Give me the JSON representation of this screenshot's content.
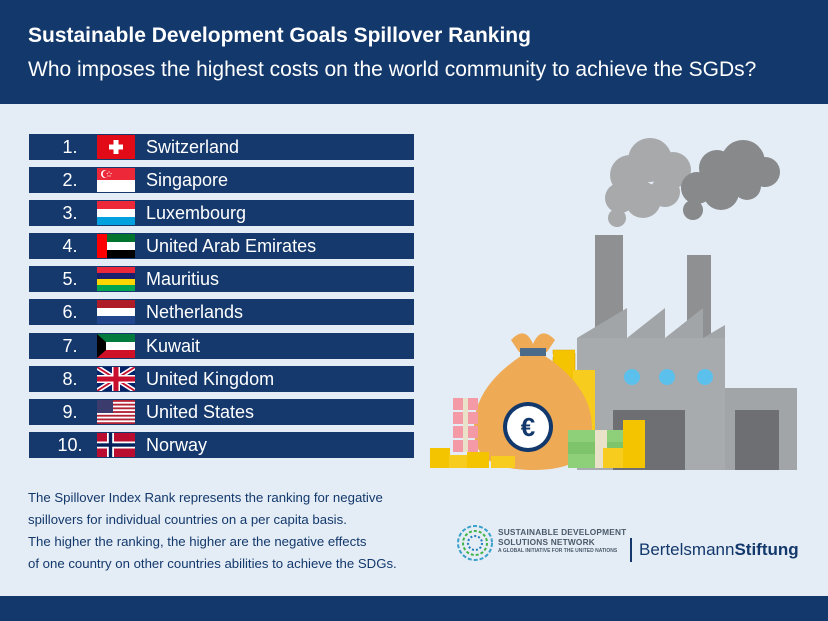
{
  "header": {
    "title": "Sustainable Development Goals Spillover Ranking",
    "subtitle": "Who imposes the highest costs on the world community to achieve the SGDs?"
  },
  "ranking": [
    {
      "rank": "1.",
      "country": "Switzerland",
      "flag": "flag-switzerland"
    },
    {
      "rank": "2.",
      "country": "Singapore",
      "flag": "flag-singapore"
    },
    {
      "rank": "3.",
      "country": "Luxembourg",
      "flag": "flag-luxembourg"
    },
    {
      "rank": "4.",
      "country": "United Arab Emirates",
      "flag": "flag-uae"
    },
    {
      "rank": "5.",
      "country": "Mauritius",
      "flag": "flag-mauritius"
    },
    {
      "rank": "6.",
      "country": "Netherlands",
      "flag": "flag-netherlands"
    },
    {
      "rank": "7.",
      "country": "Kuwait",
      "flag": "flag-kuwait"
    },
    {
      "rank": "8.",
      "country": "United Kingdom",
      "flag": "flag-united-kingdom"
    },
    {
      "rank": "9.",
      "country": "United States",
      "flag": "flag-united-states"
    },
    {
      "rank": "10.",
      "country": "Norway",
      "flag": "flag-norway"
    }
  ],
  "description": {
    "line1": "The Spillover Index Rank represents the ranking for negative",
    "line2": "spillovers for individual countries on a per capita basis.",
    "line3": "The higher the ranking, the higher are the negative effects",
    "line4": "of one country on other countries abilities to achieve the SDGs."
  },
  "logos": {
    "sdsn_line1": "SUSTAINABLE DEVELOPMENT",
    "sdsn_line2": "SOLUTIONS NETWORK",
    "sdsn_line3": "A GLOBAL INITIATIVE FOR THE UNITED NATIONS",
    "bertelsmann_regular": "Bertelsmann",
    "bertelsmann_bold": "Stiftung"
  },
  "illustration": {
    "euro_symbol": "€"
  },
  "colors": {
    "header_bg": "#13386b",
    "row_bg": "#15396c",
    "page_bg": "#e4edf6"
  }
}
